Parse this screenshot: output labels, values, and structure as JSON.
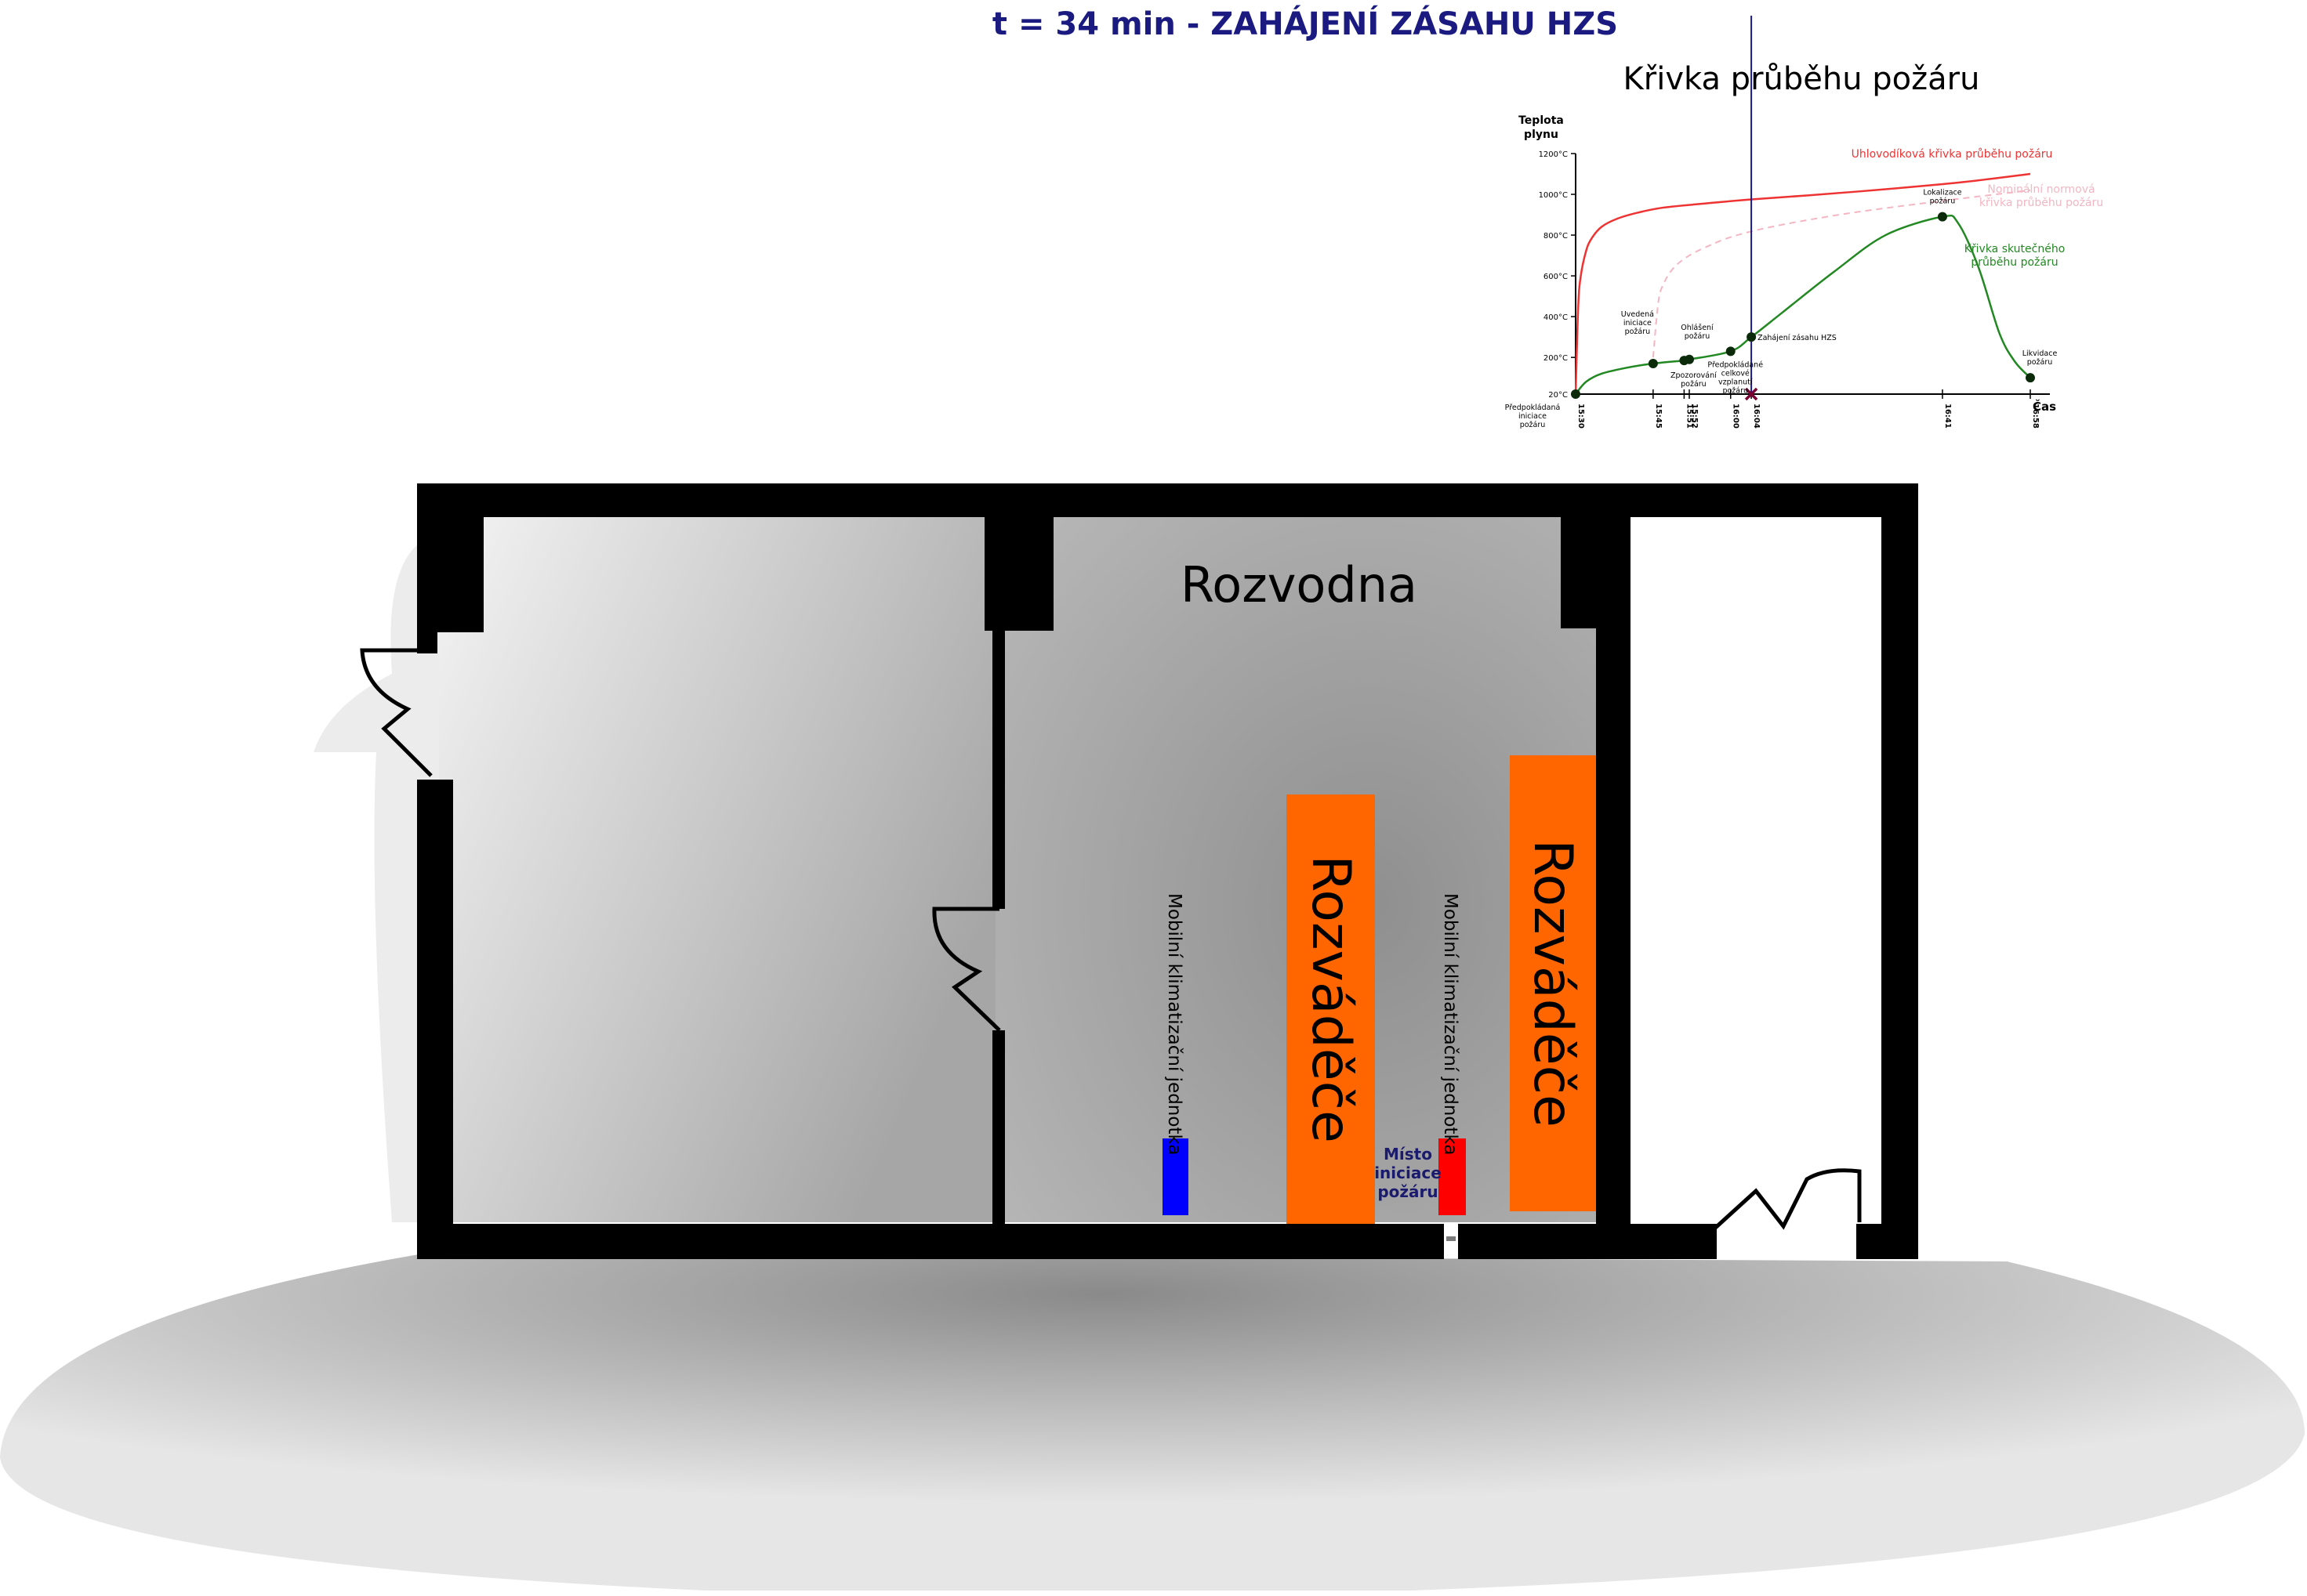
{
  "title": "t = 34 min -  ZAHÁJENÍ ZÁSAHU HZS",
  "colors": {
    "title": "#1a1a80",
    "wall": "#000000",
    "switchboard": "#ff6600",
    "ac_unit": "#0000ff",
    "fire_origin": "#ff0000",
    "fire_label": "#1a1a6e",
    "curve_envelope": "#ee3333",
    "curve_nominal": "#f4b6c2",
    "curve_actual": "#228822",
    "time_marker": "#1a1a8c",
    "cross_marker": "#7a0033"
  },
  "floorplan": {
    "room_label": "Rozvodna",
    "switchboard_label": "Rozváděče",
    "ac_label": "Mobilní klimatizační jednotka",
    "fire_label_lines": [
      "Místo",
      "iniciace",
      "požáru"
    ]
  },
  "chart_data": {
    "type": "line",
    "title": "Křivka průběhu požáru",
    "ylabel_lines": [
      "Teplota",
      "plynu"
    ],
    "xlabel": "Čas",
    "y_ticks": [
      "1200°C",
      "1000°C",
      "800°C",
      "600°C",
      "400°C",
      "200°C",
      "20°C"
    ],
    "y_tick_values": [
      1200,
      1000,
      800,
      600,
      400,
      200,
      20
    ],
    "x_ticks": [
      "15:30",
      "15:45",
      "15:51",
      "15:52",
      "16:00",
      "16:04",
      "16:41",
      "16:58"
    ],
    "x_tick_minutes": [
      0,
      15,
      21,
      22,
      30,
      34,
      71,
      88
    ],
    "x_range_minutes": [
      0,
      88
    ],
    "y_range": [
      20,
      1200
    ],
    "current_time_minutes": 34,
    "series": [
      {
        "name": "Uhlovodíková křivka průběhu požáru",
        "style": "solid",
        "x": [
          0,
          0.5,
          1,
          2,
          3,
          5,
          8,
          12,
          17,
          25,
          34,
          45,
          60,
          75,
          88
        ],
        "y": [
          20,
          450,
          600,
          720,
          780,
          840,
          880,
          910,
          935,
          955,
          975,
          995,
          1025,
          1060,
          1100
        ]
      },
      {
        "name": "Nominální normová křivka průběhu požáru",
        "style": "dashed",
        "x": [
          15,
          16,
          17,
          19,
          22,
          26,
          30,
          36,
          44,
          55,
          70,
          88
        ],
        "y": [
          200,
          470,
          560,
          640,
          700,
          750,
          790,
          830,
          870,
          915,
          965,
          1020
        ]
      },
      {
        "name": "Křivka skutečného průběhu požáru",
        "style": "solid",
        "x": [
          0,
          2,
          5,
          10,
          15,
          21,
          22,
          30,
          34,
          40,
          50,
          60,
          71,
          74,
          78,
          82,
          85,
          88
        ],
        "y": [
          20,
          80,
          120,
          150,
          170,
          185,
          190,
          230,
          300,
          420,
          620,
          800,
          890,
          860,
          640,
          320,
          180,
          100
        ]
      }
    ],
    "events": [
      {
        "label_lines": [
          "Předpokládaná",
          "iniciace",
          "požáru"
        ],
        "x": 0,
        "y": 20
      },
      {
        "label_lines": [
          "Uvedená",
          "iniciace",
          "požáru"
        ],
        "x": 15,
        "y": 170
      },
      {
        "label_lines": [
          "Zpozorování",
          "požáru"
        ],
        "x": 21,
        "y": 185
      },
      {
        "label_lines": [
          "Ohlášení",
          "požáru"
        ],
        "x": 22,
        "y": 190
      },
      {
        "label_lines": [
          "Předpokládané",
          "celkové",
          "vzplanutí",
          "požáru"
        ],
        "x": 30,
        "y": 230
      },
      {
        "label_lines": [
          "Zahájení zásahu HZS"
        ],
        "x": 34,
        "y": 300
      },
      {
        "label_lines": [
          "Lokalizace",
          "požáru"
        ],
        "x": 71,
        "y": 890
      },
      {
        "label_lines": [
          "Likvidace",
          "požáru"
        ],
        "x": 88,
        "y": 100
      }
    ],
    "legend_labels": [
      {
        "lines": [
          "Uhlovodíková křivka průběhu požáru"
        ]
      },
      {
        "lines": [
          "Nominální normová",
          "křivka průběhu požáru"
        ]
      },
      {
        "lines": [
          "Křivka skutečného",
          "průběhu požáru"
        ]
      }
    ],
    "grid": false
  }
}
